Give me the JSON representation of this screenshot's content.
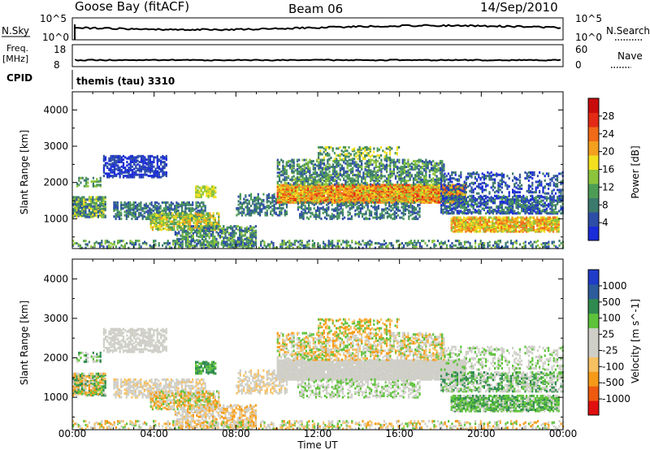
{
  "header": {
    "station": "Goose Bay (fitACF)",
    "beam": "Beam 06",
    "date": "14/Sep/2010"
  },
  "top_panels": {
    "nsky_label": "N.Sky",
    "nsearch_label": "N.Search",
    "nsky_ticks": [
      "10^5",
      "10^0"
    ],
    "nsearch_ticks": [
      "10^5",
      "10^0"
    ],
    "freq_label": "Freq.",
    "freq_unit": "[MHz]",
    "freq_ticks": [
      "18",
      "8"
    ],
    "nave_label": "Nave",
    "nave_ticks": [
      "60",
      "0"
    ],
    "cpid_label": "CPID",
    "cpid_value": "themis (tau) 3310"
  },
  "colors": {
    "power_scale": [
      "#1a2bd8",
      "#2d4ea6",
      "#3b7a6c",
      "#4d9c56",
      "#8cc43c",
      "#f2e01e",
      "#f2a01e",
      "#f06a18",
      "#e22a14",
      "#c80c0c"
    ],
    "velocity_scale": [
      "#e01010",
      "#ee5a10",
      "#f59a18",
      "#f7c060",
      "#cfcfc8",
      "#cfcfc8",
      "#5ec23a",
      "#2f8a4f",
      "#2d5c9a",
      "#1e3cc8"
    ]
  },
  "chart_data": [
    {
      "type": "heatmap",
      "panel": "power",
      "ylabel": "Slant Range [km]",
      "colorbar_label": "Power [dB]",
      "colorbar_ticks": [
        "4",
        "8",
        "12",
        "16",
        "20",
        "24",
        "28"
      ],
      "yticks": [
        "1000",
        "2000",
        "3000",
        "4000"
      ],
      "ylim": [
        180,
        4500
      ],
      "xlim": [
        0,
        24
      ],
      "regions": [
        {
          "t": [
            0.0,
            1.5
          ],
          "r": [
            1100,
            1550
          ],
          "level": "8-16"
        },
        {
          "t": [
            1.5,
            4.5
          ],
          "r": [
            2200,
            2700
          ],
          "level": "4-8"
        },
        {
          "t": [
            4.0,
            7.0
          ],
          "r": [
            700,
            1100
          ],
          "level": "12-20"
        },
        {
          "t": [
            10.0,
            19.0
          ],
          "r": [
            1500,
            1900
          ],
          "level": "16-28"
        },
        {
          "t": [
            10.0,
            18.0
          ],
          "r": [
            1900,
            2600
          ],
          "level": "8-16"
        },
        {
          "t": [
            18.5,
            23.8
          ],
          "r": [
            700,
            1000
          ],
          "level": "12-24"
        },
        {
          "t": [
            18.0,
            24.0
          ],
          "r": [
            1150,
            1600
          ],
          "level": "4-12"
        }
      ]
    },
    {
      "type": "heatmap",
      "panel": "velocity",
      "ylabel": "Slant Range [km]",
      "colorbar_label": "Velocity [m s^-1]",
      "colorbar_ticks": [
        "1000",
        "500",
        "100",
        "25",
        "-25",
        "-100",
        "-500",
        "-1000"
      ],
      "yticks": [
        "1000",
        "2000",
        "3000",
        "4000"
      ],
      "ylim": [
        180,
        4500
      ],
      "xlim": [
        0,
        24
      ],
      "xticks": [
        "00:00",
        "04:00",
        "08:00",
        "12:00",
        "16:00",
        "20:00",
        "00:00"
      ],
      "xlabel": "Time UT",
      "regions": [
        {
          "t": [
            0.0,
            1.5
          ],
          "r": [
            1100,
            1550
          ],
          "level": "mixed green/orange"
        },
        {
          "t": [
            1.5,
            9.0
          ],
          "r": [
            1000,
            2800
          ],
          "level": "ground scatter (grey)"
        },
        {
          "t": [
            10.0,
            19.0
          ],
          "r": [
            1500,
            2100
          ],
          "level": "ground scatter (grey)"
        },
        {
          "t": [
            12.0,
            16.0
          ],
          "r": [
            2300,
            2600
          ],
          "level": "-100 to 100"
        },
        {
          "t": [
            18.5,
            23.8
          ],
          "r": [
            700,
            1100
          ],
          "level": "25 to 100"
        }
      ]
    }
  ]
}
